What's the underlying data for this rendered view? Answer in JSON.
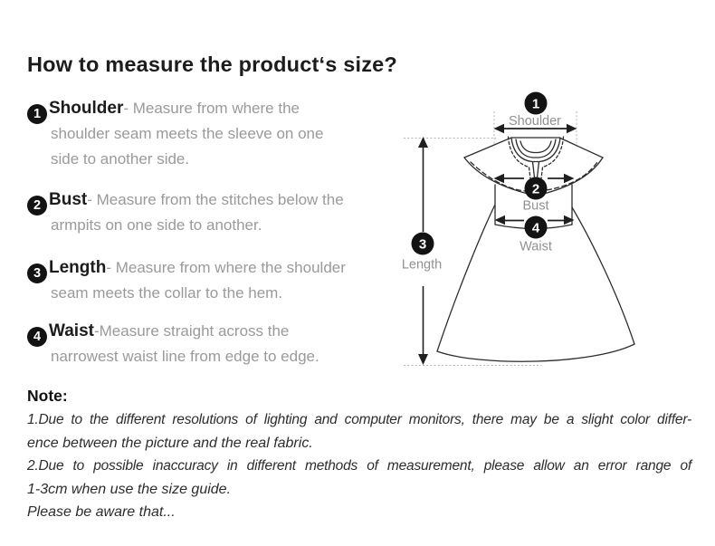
{
  "title": "How to measure the product‘s size?",
  "measurements": [
    {
      "num": "1",
      "term": "Shoulder",
      "lines": [
        "- Measure from where the",
        "shoulder seam meets the sleeve on one",
        "side to another side."
      ]
    },
    {
      "num": "2",
      "term": "Bust",
      "lines": [
        "- Measure from the stitches below the",
        "armpits on one side to another."
      ]
    },
    {
      "num": "3",
      "term": "Length",
      "lines": [
        "- Measure from where the shoulder",
        "seam meets the collar to the hem."
      ]
    },
    {
      "num": "4",
      "term": "Waist",
      "lines": [
        "-Measure straight across the",
        "narrowest waist line from edge to edge."
      ]
    }
  ],
  "diagram": {
    "shoulder": {
      "num": "1",
      "label": "Shoulder"
    },
    "bust": {
      "num": "2",
      "label": "Bust"
    },
    "length": {
      "num": "3",
      "label": "Length"
    },
    "waist": {
      "num": "4",
      "label": "Waist"
    }
  },
  "note": {
    "heading": "Note:",
    "lines": [
      "1.Due to the different resolutions of lighting and computer monitors, there may be a slight color differ-",
      "ence between the picture and the real fabric.",
      "2.Due to possible inaccuracy in different methods of measurement, please allow an error range of",
      "1-3cm when use the size guide.",
      "Please be aware that..."
    ]
  },
  "colors": {
    "badge": "#131313",
    "line_art": "#2c2c2c",
    "arrow": "#1f1f1f",
    "guide_dotted": "#b5b5b5",
    "label_gray": "#909090",
    "desc_gray": "#9a9a9a",
    "heading_text": "#1c1c1c"
  }
}
